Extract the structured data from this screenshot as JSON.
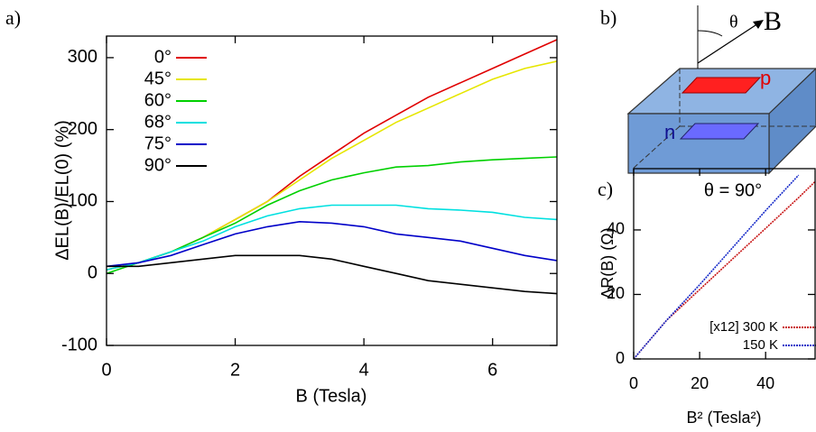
{
  "chart_data": [
    {
      "type": "line",
      "panel": "a)",
      "x_label": "B (Tesla)",
      "y_label": "ΔEL(B)/EL(0) (%)",
      "x": [
        0,
        0.5,
        1,
        1.5,
        2,
        2.5,
        3,
        3.5,
        4,
        4.5,
        5,
        5.5,
        6,
        6.5,
        7
      ],
      "series": [
        {
          "name": "0°",
          "color": "#e00000",
          "values": [
            5,
            15,
            30,
            50,
            75,
            100,
            135,
            165,
            195,
            220,
            245,
            265,
            285,
            305,
            325
          ]
        },
        {
          "name": "45°",
          "color": "#e6e600",
          "values": [
            5,
            15,
            30,
            50,
            75,
            100,
            130,
            160,
            185,
            210,
            230,
            250,
            270,
            285,
            295
          ]
        },
        {
          "name": "60°",
          "color": "#00d000",
          "values": [
            0,
            15,
            30,
            50,
            70,
            95,
            115,
            130,
            140,
            148,
            150,
            155,
            158,
            160,
            162
          ]
        },
        {
          "name": "68°",
          "color": "#00e0e0",
          "values": [
            5,
            15,
            30,
            45,
            65,
            80,
            90,
            95,
            95,
            95,
            90,
            88,
            85,
            78,
            75
          ]
        },
        {
          "name": "75°",
          "color": "#0000c8",
          "values": [
            10,
            15,
            25,
            40,
            55,
            65,
            72,
            70,
            65,
            55,
            50,
            45,
            35,
            25,
            18
          ]
        },
        {
          "name": "90°",
          "color": "#000000",
          "values": [
            10,
            10,
            15,
            20,
            25,
            25,
            25,
            20,
            10,
            0,
            -10,
            -15,
            -20,
            -25,
            -28
          ]
        }
      ],
      "xlim": [
        0,
        7
      ],
      "ylim": [
        -100,
        330
      ],
      "xticks": [
        0,
        2,
        4,
        6
      ],
      "yticks": [
        -100,
        0,
        100,
        200,
        300
      ],
      "legend": "upper left"
    },
    {
      "type": "line",
      "panel": "c)",
      "title": "θ = 90°",
      "x_label": "B² (Tesla²)",
      "y_label": "ΔR(B) (Ω)",
      "x": [
        0,
        10,
        20,
        30,
        40,
        50,
        55
      ],
      "series": [
        {
          "name": "[x12] 300 K",
          "color": "#c81414",
          "values": [
            0,
            12,
            21.5,
            31,
            40.5,
            50,
            55
          ]
        },
        {
          "name": "150 K",
          "color": "#1428c8",
          "values": [
            0,
            12,
            23,
            34.5,
            46,
            57,
            null
          ]
        }
      ],
      "xlim": [
        0,
        55
      ],
      "ylim": [
        0,
        59
      ],
      "xticks": [
        0,
        20,
        40
      ],
      "yticks": [
        0,
        20,
        40
      ],
      "legend": "lower right"
    }
  ],
  "panel_b": {
    "panel": "b)",
    "field_label": "B",
    "angle_label": "θ",
    "p_label": "p",
    "n_label": "n"
  }
}
